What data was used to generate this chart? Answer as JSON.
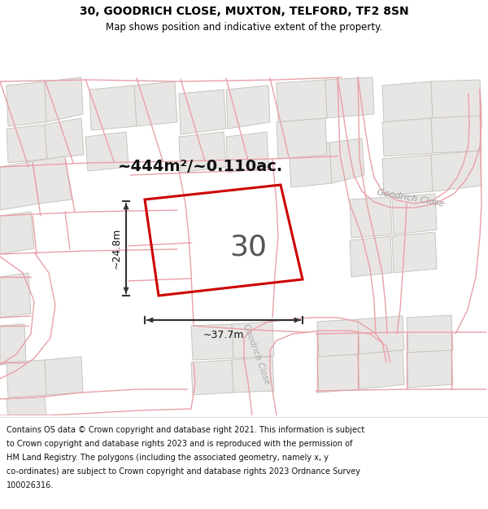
{
  "title_line1": "30, GOODRICH CLOSE, MUXTON, TELFORD, TF2 8SN",
  "title_line2": "Map shows position and indicative extent of the property.",
  "area_text": "~444m²/~0.110ac.",
  "width_text": "~37.7m",
  "height_text": "~24.8m",
  "plot_number": "30",
  "map_bg": "#f5f4f2",
  "highlight_color": "#cc0000",
  "road_line_color": "#e8a0a8",
  "building_fill": "#e8e6e4",
  "building_edge": "#c8c5c0",
  "road_label_color": "#aaaaaa",
  "header_bg": "#ffffff",
  "footer_bg": "#ffffff",
  "footer_lines": [
    "Contains OS data © Crown copyright and database right 2021. This information is subject",
    "to Crown copyright and database rights 2023 and is reproduced with the permission of",
    "HM Land Registry. The polygons (including the associated geometry, namely x, y",
    "co-ordinates) are subject to Crown copyright and database rights 2023 Ordnance Survey",
    "100026316."
  ]
}
